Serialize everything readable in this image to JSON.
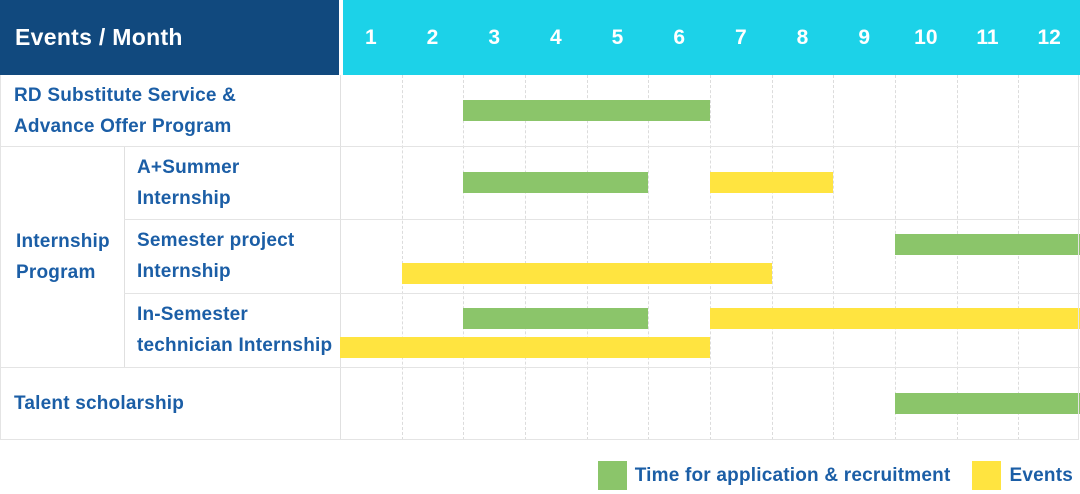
{
  "header": {
    "corner_label": "Events / Month",
    "months": [
      "1",
      "2",
      "3",
      "4",
      "5",
      "6",
      "7",
      "8",
      "9",
      "10",
      "11",
      "12"
    ]
  },
  "legend": {
    "items": [
      {
        "name": "application",
        "label": "Time for application & recruitment",
        "color": "#8BC56A"
      },
      {
        "name": "events",
        "label": "Events",
        "color": "#FFE440"
      }
    ]
  },
  "colors": {
    "header_navy": "#11497E",
    "header_cyan": "#1CD2E8",
    "bar_green": "#8BC56A",
    "bar_yellow": "#FFE440",
    "label_blue": "#1B5EA6",
    "grid_line": "#E0E0E0",
    "background": "#FFFFFF"
  },
  "chart_data": {
    "type": "gantt",
    "unit": "month",
    "x_domain": [
      1,
      12
    ],
    "x_ticks": [
      "1",
      "2",
      "3",
      "4",
      "5",
      "6",
      "7",
      "8",
      "9",
      "10",
      "11",
      "12"
    ],
    "title": "Events / Month",
    "legend": {
      "green": "Time for application & recruitment",
      "yellow": "Events"
    },
    "group_label": "Internship Program",
    "group_label_lines": [
      "Internship",
      "Program"
    ],
    "rows": [
      {
        "group": null,
        "label": "RD Substitute Service & Advance Offer Program",
        "label_lines": [
          "RD Substitute Service &",
          "Advance Offer Program"
        ],
        "bars": [
          {
            "type": "application",
            "color": "green",
            "start_month": 3,
            "end_month": 6,
            "lane": "center"
          }
        ]
      },
      {
        "group": "Internship Program",
        "label": "A+Summer Internship",
        "label_lines": [
          "A+Summer",
          "Internship"
        ],
        "bars": [
          {
            "type": "application",
            "color": "green",
            "start_month": 3,
            "end_month": 5,
            "lane": "center"
          },
          {
            "type": "event",
            "color": "yellow",
            "start_month": 7,
            "end_month": 8,
            "lane": "center"
          }
        ]
      },
      {
        "group": "Internship Program",
        "label": "Semester project Internship",
        "label_lines": [
          "Semester project",
          "Internship"
        ],
        "bars": [
          {
            "type": "application",
            "color": "green",
            "start_month": 10,
            "end_month": 12,
            "lane": "upper"
          },
          {
            "type": "event",
            "color": "yellow",
            "start_month": 2,
            "end_month": 7,
            "lane": "lower"
          }
        ]
      },
      {
        "group": "Internship Program",
        "label": "In-Semester technician Internship",
        "label_lines": [
          "In-Semester",
          "technician Internship"
        ],
        "bars": [
          {
            "type": "application",
            "color": "green",
            "start_month": 3,
            "end_month": 5,
            "lane": "upper"
          },
          {
            "type": "event",
            "color": "yellow",
            "start_month": 7,
            "end_month": 12,
            "lane": "upper"
          },
          {
            "type": "event",
            "color": "yellow",
            "start_month": 1,
            "end_month": 6,
            "lane": "lower"
          }
        ]
      },
      {
        "group": null,
        "label": "Talent scholarship",
        "label_lines": [
          "Talent scholarship"
        ],
        "bars": [
          {
            "type": "application",
            "color": "green",
            "start_month": 10,
            "end_month": 12,
            "lane": "center"
          }
        ]
      }
    ]
  }
}
